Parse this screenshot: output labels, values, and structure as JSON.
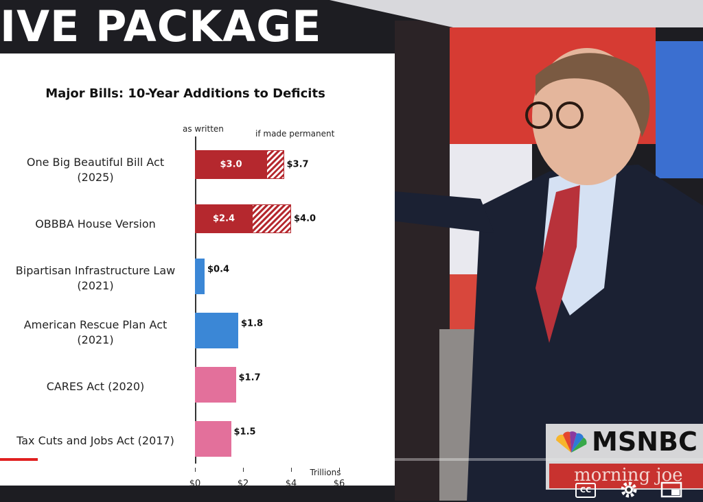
{
  "header": {
    "title": "IVE PACKAGE"
  },
  "chart_data": {
    "type": "bar",
    "orientation": "horizontal",
    "title": "Major Bills: 10-Year Additions to Deficits",
    "categories": [
      "One Big Beautiful Bill Act (2025)",
      "OBBBA House Version",
      "Bipartisan Infrastructure Law (2021)",
      "American Rescue Plan Act (2021)",
      "CARES Act (2020)",
      "Tax Cuts and Jobs Act (2017)"
    ],
    "series": [
      {
        "name": "as written",
        "colors": [
          "#b5282e",
          "#b5282e",
          "#3b87d6",
          "#3b87d6",
          "#e3709b",
          "#e3709b"
        ],
        "values": [
          3.0,
          2.4,
          0.4,
          1.8,
          1.7,
          1.5
        ],
        "value_labels": [
          "$3.0",
          "$2.4",
          "$0.4",
          "$1.8",
          "$1.7",
          "$1.5"
        ]
      },
      {
        "name": "if made permanent",
        "color": "#b5282e",
        "pattern": "hatched",
        "values": [
          3.7,
          4.0,
          null,
          null,
          null,
          null
        ],
        "value_labels": [
          "$3.7",
          "$4.0",
          null,
          null,
          null,
          null
        ]
      }
    ],
    "xlim": [
      0,
      6
    ],
    "xticks": [
      {
        "value": 0,
        "label": "$0"
      },
      {
        "value": 2,
        "label": "$2"
      },
      {
        "value": 4,
        "label": "$4"
      },
      {
        "value": 6,
        "label": "$6"
      }
    ],
    "xlabel": "Trillions"
  },
  "logo": {
    "network": "MSNBC",
    "show": "morning joe"
  },
  "player": {
    "captions": "CC"
  }
}
